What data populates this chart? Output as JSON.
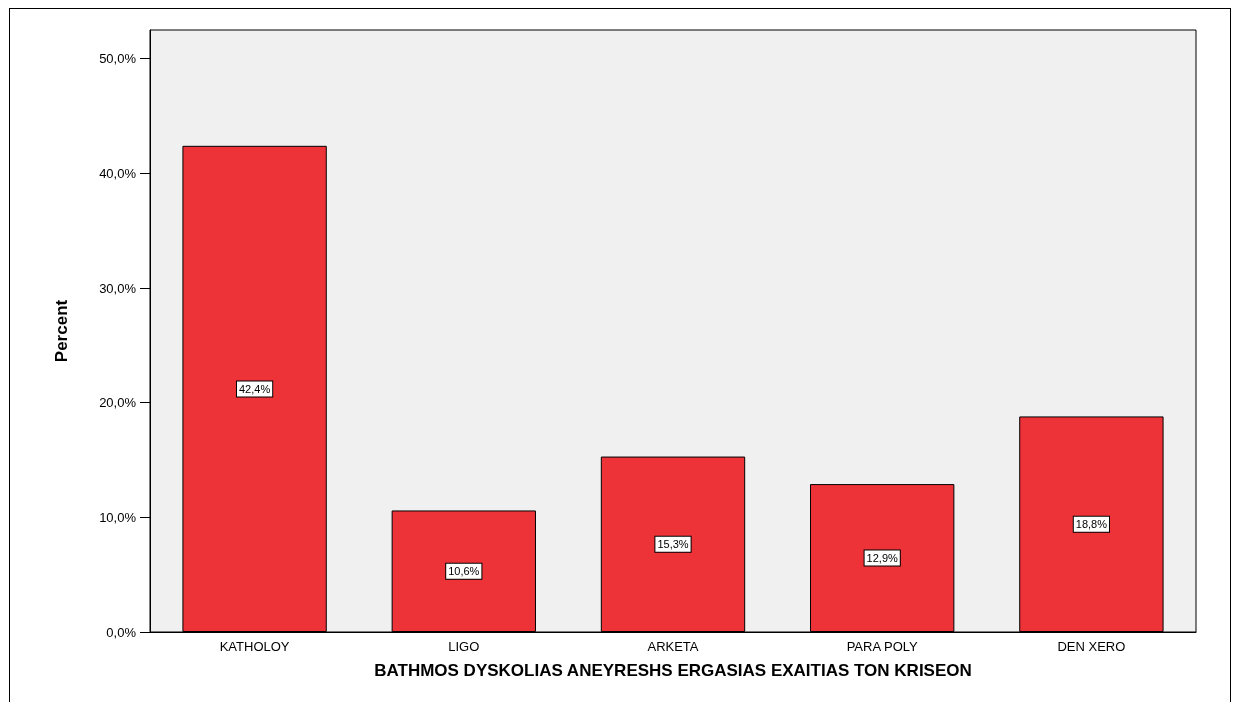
{
  "chart_data": {
    "type": "bar",
    "xlabel": "BATHMOS DYSKOLIAS ANEYRESHS ERGASIAS EXAITIAS TON KRISEON",
    "ylabel": "Percent",
    "categories": [
      "KATHOLOY",
      "LIGO",
      "ARKETA",
      "PARA POLY",
      "DEN XERO"
    ],
    "values": [
      42.4,
      10.6,
      15.3,
      12.9,
      18.8
    ],
    "value_labels": [
      "42,4%",
      "10,6%",
      "15,3%",
      "12,9%",
      "18,8%"
    ],
    "color": "#ee3338",
    "ylim": [
      0,
      52.5
    ],
    "yticks": [
      {
        "value": 0,
        "label": "0,0%"
      },
      {
        "value": 10,
        "label": "10,0%"
      },
      {
        "value": 20,
        "label": "20,0%"
      },
      {
        "value": 30,
        "label": "30,0%"
      },
      {
        "value": 40,
        "label": "40,0%"
      },
      {
        "value": 50,
        "label": "50,0%"
      }
    ],
    "grid": false
  }
}
